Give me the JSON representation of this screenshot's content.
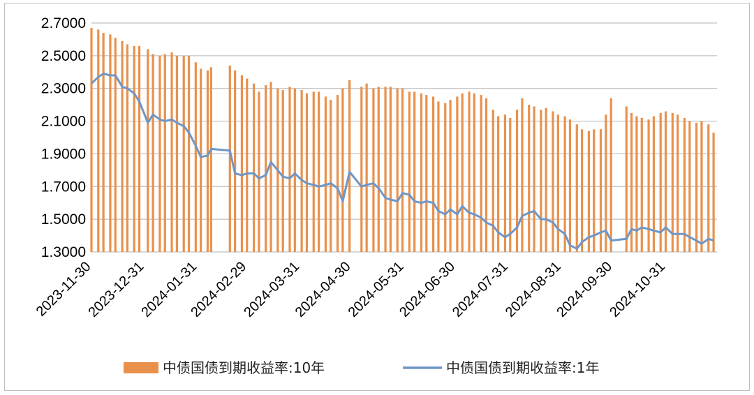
{
  "chart_data": {
    "type": "bar+line",
    "title": "",
    "xlabel": "",
    "ylabel": "",
    "ylim": [
      1.3,
      2.7
    ],
    "yticks": [
      "1.3000",
      "1.5000",
      "1.7000",
      "1.9000",
      "2.1000",
      "2.3000",
      "2.5000",
      "2.7000"
    ],
    "xtick_labels": [
      "2023-11-30",
      "2023-12-31",
      "2024-01-31",
      "2024-02-29",
      "2024-03-31",
      "2024-04-30",
      "2024-05-31",
      "2024-06-30",
      "2024-07-31",
      "2024-08-31",
      "2024-09-30",
      "2024-10-31"
    ],
    "x_range": [
      "2023-11-30",
      "2024-11-30"
    ],
    "grid": true,
    "legend_position": "bottom",
    "series": [
      {
        "name": "中债国债到期收益率:10年",
        "type": "bar",
        "color": "#e8914d",
        "points": [
          [
            "2023-11-30",
            2.67
          ],
          [
            "2023-12-04",
            2.66
          ],
          [
            "2023-12-07",
            2.64
          ],
          [
            "2023-12-11",
            2.63
          ],
          [
            "2023-12-14",
            2.61
          ],
          [
            "2023-12-18",
            2.59
          ],
          [
            "2023-12-21",
            2.57
          ],
          [
            "2023-12-25",
            2.56
          ],
          [
            "2023-12-28",
            2.56
          ],
          [
            "2024-01-02",
            2.54
          ],
          [
            "2024-01-05",
            2.51
          ],
          [
            "2024-01-09",
            2.5
          ],
          [
            "2024-01-12",
            2.51
          ],
          [
            "2024-01-16",
            2.52
          ],
          [
            "2024-01-19",
            2.5
          ],
          [
            "2024-01-23",
            2.5
          ],
          [
            "2024-01-26",
            2.5
          ],
          [
            "2024-01-30",
            2.46
          ],
          [
            "2024-02-02",
            2.42
          ],
          [
            "2024-02-06",
            2.41
          ],
          [
            "2024-02-08",
            2.43
          ],
          [
            "2024-02-19",
            2.44
          ],
          [
            "2024-02-22",
            2.41
          ],
          [
            "2024-02-26",
            2.38
          ],
          [
            "2024-02-29",
            2.36
          ],
          [
            "2024-03-04",
            2.33
          ],
          [
            "2024-03-07",
            2.28
          ],
          [
            "2024-03-11",
            2.32
          ],
          [
            "2024-03-14",
            2.34
          ],
          [
            "2024-03-18",
            2.3
          ],
          [
            "2024-03-21",
            2.29
          ],
          [
            "2024-03-25",
            2.31
          ],
          [
            "2024-03-28",
            2.3
          ],
          [
            "2024-04-01",
            2.29
          ],
          [
            "2024-04-04",
            2.27
          ],
          [
            "2024-04-08",
            2.28
          ],
          [
            "2024-04-11",
            2.28
          ],
          [
            "2024-04-15",
            2.25
          ],
          [
            "2024-04-18",
            2.23
          ],
          [
            "2024-04-22",
            2.26
          ],
          [
            "2024-04-25",
            2.3
          ],
          [
            "2024-04-29",
            2.35
          ],
          [
            "2024-05-06",
            2.31
          ],
          [
            "2024-05-09",
            2.33
          ],
          [
            "2024-05-13",
            2.3
          ],
          [
            "2024-05-16",
            2.31
          ],
          [
            "2024-05-20",
            2.31
          ],
          [
            "2024-05-23",
            2.31
          ],
          [
            "2024-05-27",
            2.3
          ],
          [
            "2024-05-30",
            2.3
          ],
          [
            "2024-06-03",
            2.28
          ],
          [
            "2024-06-06",
            2.28
          ],
          [
            "2024-06-10",
            2.27
          ],
          [
            "2024-06-13",
            2.26
          ],
          [
            "2024-06-17",
            2.25
          ],
          [
            "2024-06-20",
            2.22
          ],
          [
            "2024-06-24",
            2.21
          ],
          [
            "2024-06-27",
            2.23
          ],
          [
            "2024-07-01",
            2.25
          ],
          [
            "2024-07-04",
            2.27
          ],
          [
            "2024-07-08",
            2.28
          ],
          [
            "2024-07-11",
            2.27
          ],
          [
            "2024-07-15",
            2.26
          ],
          [
            "2024-07-18",
            2.24
          ],
          [
            "2024-07-22",
            2.17
          ],
          [
            "2024-07-25",
            2.13
          ],
          [
            "2024-07-29",
            2.14
          ],
          [
            "2024-08-01",
            2.12
          ],
          [
            "2024-08-05",
            2.17
          ],
          [
            "2024-08-08",
            2.24
          ],
          [
            "2024-08-12",
            2.2
          ],
          [
            "2024-08-15",
            2.19
          ],
          [
            "2024-08-19",
            2.17
          ],
          [
            "2024-08-22",
            2.18
          ],
          [
            "2024-08-26",
            2.16
          ],
          [
            "2024-08-29",
            2.14
          ],
          [
            "2024-09-02",
            2.13
          ],
          [
            "2024-09-05",
            2.11
          ],
          [
            "2024-09-09",
            2.08
          ],
          [
            "2024-09-12",
            2.05
          ],
          [
            "2024-09-16",
            2.04
          ],
          [
            "2024-09-19",
            2.05
          ],
          [
            "2024-09-23",
            2.05
          ],
          [
            "2024-09-26",
            2.14
          ],
          [
            "2024-09-29",
            2.24
          ],
          [
            "2024-10-08",
            2.19
          ],
          [
            "2024-10-11",
            2.15
          ],
          [
            "2024-10-14",
            2.13
          ],
          [
            "2024-10-17",
            2.12
          ],
          [
            "2024-10-21",
            2.11
          ],
          [
            "2024-10-24",
            2.13
          ],
          [
            "2024-10-28",
            2.15
          ],
          [
            "2024-10-31",
            2.16
          ],
          [
            "2024-11-04",
            2.15
          ],
          [
            "2024-11-07",
            2.14
          ],
          [
            "2024-11-11",
            2.12
          ],
          [
            "2024-11-14",
            2.1
          ],
          [
            "2024-11-18",
            2.09
          ],
          [
            "2024-11-21",
            2.1
          ],
          [
            "2024-11-25",
            2.08
          ],
          [
            "2024-11-28",
            2.03
          ]
        ]
      },
      {
        "name": "中债国债到期收益率:1年",
        "type": "line",
        "color": "#6f96c6",
        "points": [
          [
            "2023-11-30",
            2.33
          ],
          [
            "2023-12-04",
            2.37
          ],
          [
            "2023-12-07",
            2.39
          ],
          [
            "2023-12-11",
            2.38
          ],
          [
            "2023-12-14",
            2.38
          ],
          [
            "2023-12-18",
            2.31
          ],
          [
            "2023-12-21",
            2.3
          ],
          [
            "2023-12-25",
            2.27
          ],
          [
            "2023-12-28",
            2.22
          ],
          [
            "2024-01-02",
            2.09
          ],
          [
            "2024-01-05",
            2.14
          ],
          [
            "2024-01-09",
            2.11
          ],
          [
            "2024-01-12",
            2.1
          ],
          [
            "2024-01-16",
            2.11
          ],
          [
            "2024-01-19",
            2.09
          ],
          [
            "2024-01-23",
            2.07
          ],
          [
            "2024-01-26",
            2.03
          ],
          [
            "2024-01-30",
            1.95
          ],
          [
            "2024-02-02",
            1.88
          ],
          [
            "2024-02-06",
            1.89
          ],
          [
            "2024-02-08",
            1.93
          ],
          [
            "2024-02-19",
            1.92
          ],
          [
            "2024-02-22",
            1.78
          ],
          [
            "2024-02-26",
            1.77
          ],
          [
            "2024-02-29",
            1.78
          ],
          [
            "2024-03-04",
            1.78
          ],
          [
            "2024-03-07",
            1.75
          ],
          [
            "2024-03-11",
            1.77
          ],
          [
            "2024-03-14",
            1.85
          ],
          [
            "2024-03-18",
            1.8
          ],
          [
            "2024-03-21",
            1.76
          ],
          [
            "2024-03-25",
            1.75
          ],
          [
            "2024-03-28",
            1.78
          ],
          [
            "2024-04-01",
            1.74
          ],
          [
            "2024-04-04",
            1.72
          ],
          [
            "2024-04-08",
            1.71
          ],
          [
            "2024-04-11",
            1.7
          ],
          [
            "2024-04-15",
            1.71
          ],
          [
            "2024-04-18",
            1.72
          ],
          [
            "2024-04-22",
            1.69
          ],
          [
            "2024-04-25",
            1.61
          ],
          [
            "2024-04-29",
            1.79
          ],
          [
            "2024-05-06",
            1.7
          ],
          [
            "2024-05-09",
            1.71
          ],
          [
            "2024-05-13",
            1.72
          ],
          [
            "2024-05-16",
            1.69
          ],
          [
            "2024-05-20",
            1.63
          ],
          [
            "2024-05-23",
            1.62
          ],
          [
            "2024-05-27",
            1.61
          ],
          [
            "2024-05-30",
            1.66
          ],
          [
            "2024-06-03",
            1.65
          ],
          [
            "2024-06-06",
            1.61
          ],
          [
            "2024-06-10",
            1.6
          ],
          [
            "2024-06-13",
            1.61
          ],
          [
            "2024-06-17",
            1.6
          ],
          [
            "2024-06-20",
            1.55
          ],
          [
            "2024-06-24",
            1.53
          ],
          [
            "2024-06-27",
            1.56
          ],
          [
            "2024-07-01",
            1.53
          ],
          [
            "2024-07-04",
            1.58
          ],
          [
            "2024-07-08",
            1.54
          ],
          [
            "2024-07-11",
            1.53
          ],
          [
            "2024-07-15",
            1.51
          ],
          [
            "2024-07-18",
            1.48
          ],
          [
            "2024-07-22",
            1.46
          ],
          [
            "2024-07-25",
            1.42
          ],
          [
            "2024-07-29",
            1.39
          ],
          [
            "2024-08-01",
            1.41
          ],
          [
            "2024-08-05",
            1.45
          ],
          [
            "2024-08-08",
            1.52
          ],
          [
            "2024-08-12",
            1.54
          ],
          [
            "2024-08-15",
            1.55
          ],
          [
            "2024-08-19",
            1.5
          ],
          [
            "2024-08-22",
            1.5
          ],
          [
            "2024-08-26",
            1.48
          ],
          [
            "2024-08-29",
            1.44
          ],
          [
            "2024-09-02",
            1.41
          ],
          [
            "2024-09-05",
            1.34
          ],
          [
            "2024-09-09",
            1.32
          ],
          [
            "2024-09-12",
            1.36
          ],
          [
            "2024-09-16",
            1.39
          ],
          [
            "2024-09-19",
            1.4
          ],
          [
            "2024-09-23",
            1.42
          ],
          [
            "2024-09-26",
            1.43
          ],
          [
            "2024-09-29",
            1.37
          ],
          [
            "2024-10-08",
            1.38
          ],
          [
            "2024-10-11",
            1.44
          ],
          [
            "2024-10-14",
            1.43
          ],
          [
            "2024-10-17",
            1.45
          ],
          [
            "2024-10-21",
            1.44
          ],
          [
            "2024-10-24",
            1.43
          ],
          [
            "2024-10-28",
            1.42
          ],
          [
            "2024-10-31",
            1.45
          ],
          [
            "2024-11-04",
            1.41
          ],
          [
            "2024-11-07",
            1.41
          ],
          [
            "2024-11-11",
            1.41
          ],
          [
            "2024-11-14",
            1.39
          ],
          [
            "2024-11-18",
            1.37
          ],
          [
            "2024-11-21",
            1.35
          ],
          [
            "2024-11-25",
            1.38
          ],
          [
            "2024-11-28",
            1.37
          ]
        ]
      }
    ]
  }
}
